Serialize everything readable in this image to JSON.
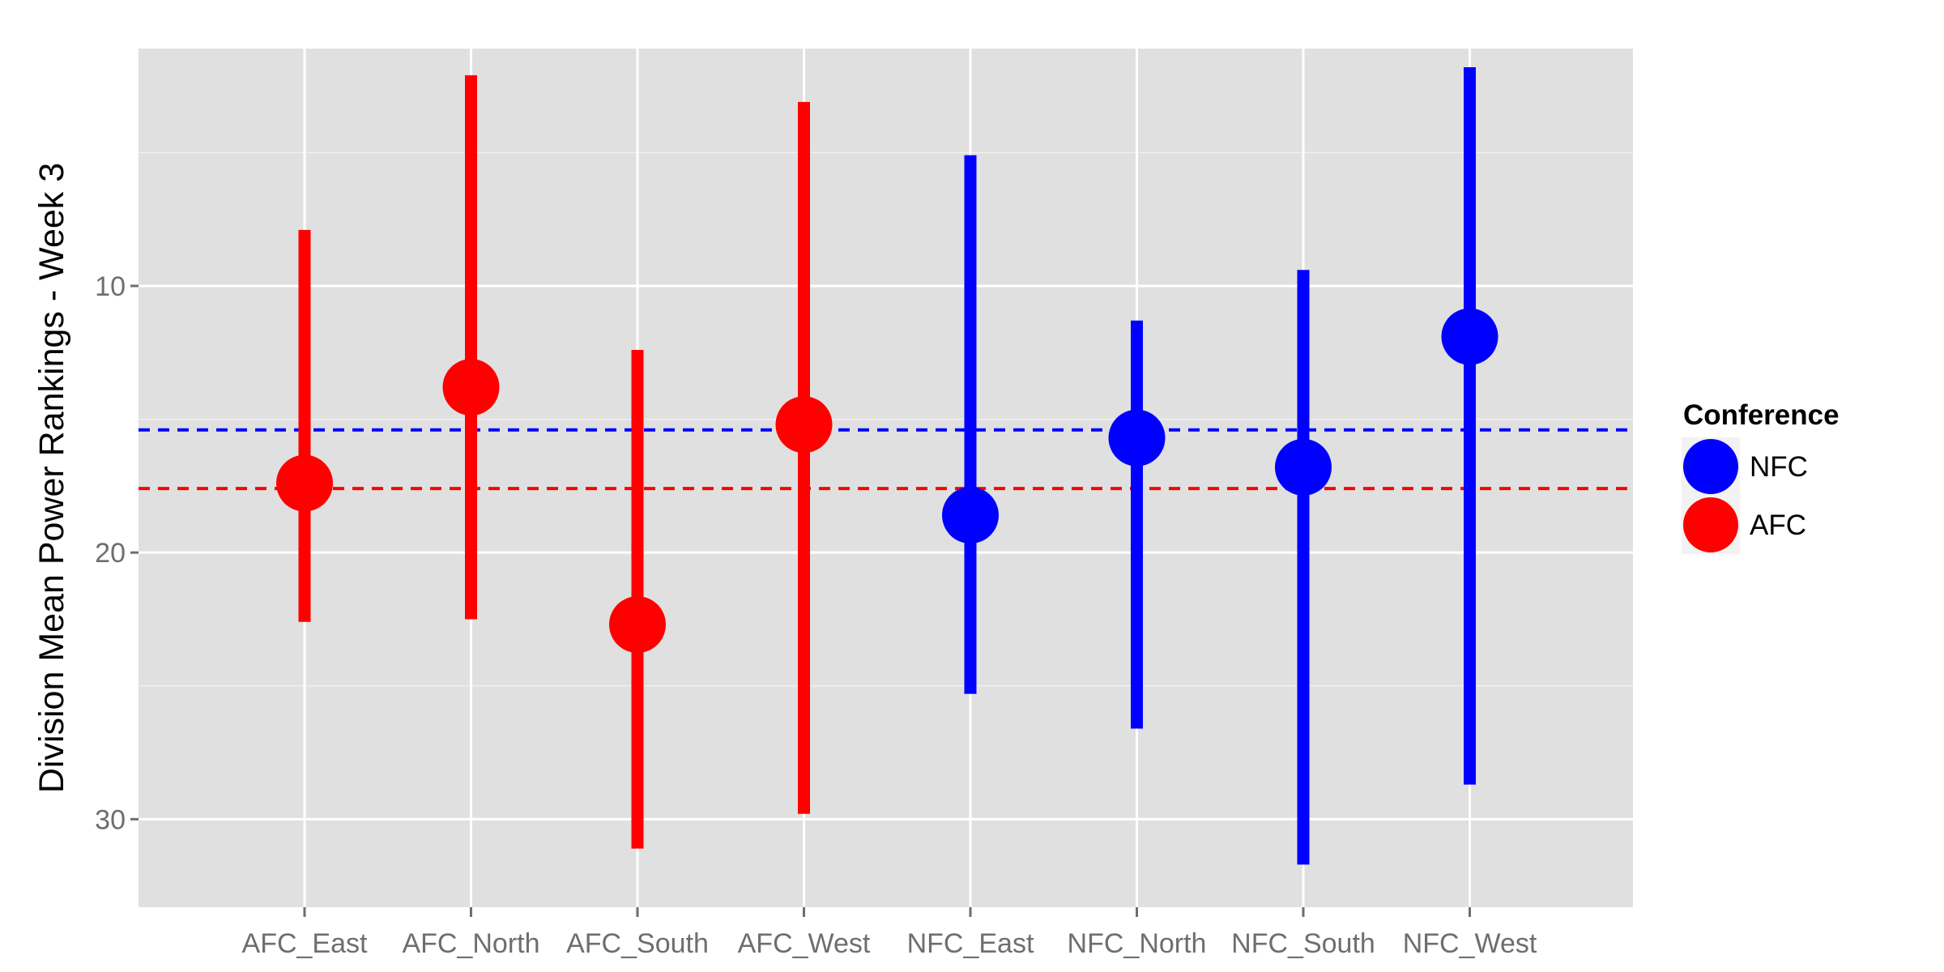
{
  "chart_data": {
    "type": "scatter",
    "title": "",
    "xlabel": "",
    "ylabel": "Division Mean Power Rankings - Week 3",
    "y_axis_reversed": true,
    "ylim": [
      1.1,
      33.3
    ],
    "yticks": [
      10,
      20,
      30
    ],
    "grid": true,
    "background": "#e0e0e0",
    "categories": [
      "AFC_East",
      "AFC_North",
      "AFC_South",
      "AFC_West",
      "NFC_East",
      "NFC_North",
      "NFC_South",
      "NFC_West"
    ],
    "series": [
      {
        "name": "AFC",
        "color": "#ff0000",
        "points": [
          {
            "x": "AFC_East",
            "mean": 17.4,
            "low": 7.9,
            "high": 22.6
          },
          {
            "x": "AFC_North",
            "mean": 13.8,
            "low": 2.1,
            "high": 22.5
          },
          {
            "x": "AFC_South",
            "mean": 22.7,
            "low": 12.4,
            "high": 31.1
          },
          {
            "x": "AFC_West",
            "mean": 15.2,
            "low": 3.1,
            "high": 29.8
          }
        ]
      },
      {
        "name": "NFC",
        "color": "#0000ff",
        "points": [
          {
            "x": "NFC_East",
            "mean": 18.6,
            "low": 5.1,
            "high": 25.3
          },
          {
            "x": "NFC_North",
            "mean": 15.7,
            "low": 11.3,
            "high": 26.6
          },
          {
            "x": "NFC_South",
            "mean": 16.8,
            "low": 9.4,
            "high": 31.7
          },
          {
            "x": "NFC_West",
            "mean": 11.9,
            "low": 1.8,
            "high": 28.7
          }
        ]
      }
    ],
    "reference_lines": [
      {
        "conference": "NFC",
        "y": 15.4,
        "color": "#0000ff",
        "style": "dashed"
      },
      {
        "conference": "AFC",
        "y": 17.6,
        "color": "#ff0000",
        "style": "dashed"
      }
    ],
    "legend": {
      "title": "Conference",
      "position": "right",
      "items": [
        {
          "label": "NFC",
          "color": "#0000ff"
        },
        {
          "label": "AFC",
          "color": "#ff0000"
        }
      ]
    }
  }
}
